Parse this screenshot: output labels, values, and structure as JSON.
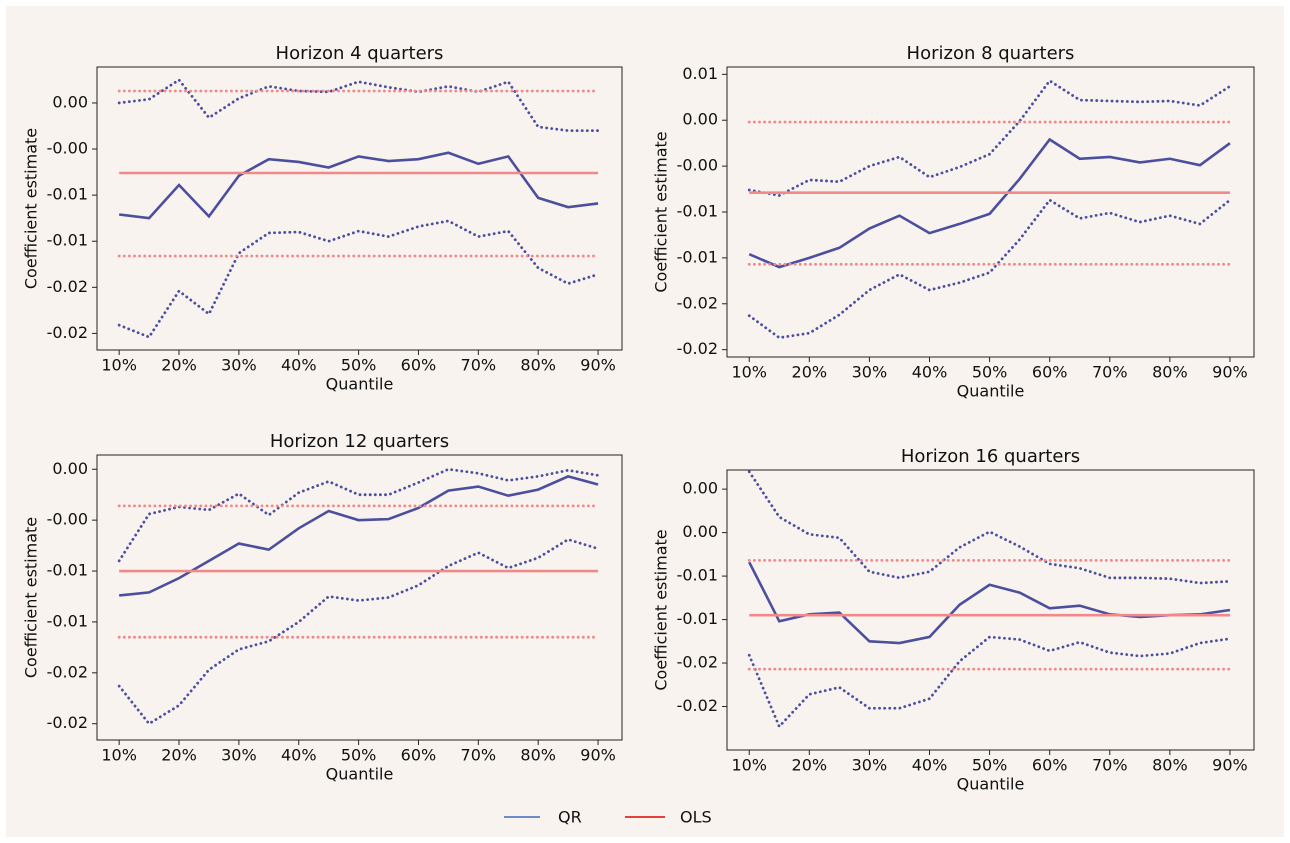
{
  "chart_data": [
    {
      "type": "line",
      "title": "Horizon 4 quarters",
      "xlabel": "Quantile",
      "ylabel": "Coefficient estimate",
      "x": [
        0.1,
        0.15,
        0.2,
        0.25,
        0.3,
        0.35,
        0.4,
        0.45,
        0.5,
        0.55,
        0.6,
        0.65,
        0.7,
        0.75,
        0.8,
        0.85,
        0.9
      ],
      "xlim": [
        0.063,
        0.94
      ],
      "xticks": [
        {
          "value": 0.1,
          "label": "10%"
        },
        {
          "value": 0.2,
          "label": "20%"
        },
        {
          "value": 0.3,
          "label": "30%"
        },
        {
          "value": 0.4,
          "label": "40%"
        },
        {
          "value": 0.5,
          "label": "50%"
        },
        {
          "value": 0.6,
          "label": "60%"
        },
        {
          "value": 0.7,
          "label": "70%"
        },
        {
          "value": 0.8,
          "label": "80%"
        },
        {
          "value": 0.9,
          "label": "90%"
        }
      ],
      "ylim": [
        -0.0268,
        0.0039
      ],
      "yticks": [
        {
          "value": 0.0,
          "label": "0.00"
        },
        {
          "value": -0.005,
          "label": "-0.00"
        },
        {
          "value": -0.01,
          "label": "-0.01"
        },
        {
          "value": -0.015,
          "label": "-0.01"
        },
        {
          "value": -0.02,
          "label": "-0.02"
        },
        {
          "value": -0.025,
          "label": "-0.02"
        }
      ],
      "series": [
        {
          "color": "#4b4f9e",
          "dash": "solid",
          "values": [
            -0.0121,
            -0.0125,
            -0.0089,
            -0.0123,
            -0.0079,
            -0.0061,
            -0.0064,
            -0.007,
            -0.0058,
            -0.0063,
            -0.0061,
            -0.0054,
            -0.0066,
            -0.0058,
            -0.0103,
            -0.0113,
            -0.0109
          ]
        },
        {
          "color": "#4b4f9e",
          "dash": "dotted",
          "values": [
            0.0,
            0.0004,
            0.0025,
            -0.0016,
            0.0005,
            0.0018,
            0.0013,
            0.0012,
            0.0023,
            0.0017,
            0.0012,
            0.0018,
            0.0012,
            0.0023,
            -0.0026,
            -0.003,
            -0.003
          ]
        },
        {
          "color": "#4b4f9e",
          "dash": "dotted",
          "values": [
            -0.0241,
            -0.0254,
            -0.0204,
            -0.0229,
            -0.0163,
            -0.0141,
            -0.014,
            -0.015,
            -0.0139,
            -0.0145,
            -0.0134,
            -0.0128,
            -0.0145,
            -0.0139,
            -0.0179,
            -0.0196,
            -0.0186
          ]
        },
        {
          "color": "#f08a8a",
          "dash": "solid",
          "values": [
            -0.0076,
            -0.0076,
            -0.0076,
            -0.0076,
            -0.0076,
            -0.0076,
            -0.0076,
            -0.0076,
            -0.0076,
            -0.0076,
            -0.0076,
            -0.0076,
            -0.0076,
            -0.0076,
            -0.0076,
            -0.0076,
            -0.0076
          ]
        },
        {
          "color": "#f08a8a",
          "dash": "dotted",
          "values": [
            0.0013,
            0.0013,
            0.0013,
            0.0013,
            0.0013,
            0.0013,
            0.0013,
            0.0013,
            0.0013,
            0.0013,
            0.0013,
            0.0013,
            0.0013,
            0.0013,
            0.0013,
            0.0013,
            0.0013
          ]
        },
        {
          "color": "#f08a8a",
          "dash": "dotted",
          "values": [
            -0.0166,
            -0.0166,
            -0.0166,
            -0.0166,
            -0.0166,
            -0.0166,
            -0.0166,
            -0.0166,
            -0.0166,
            -0.0166,
            -0.0166,
            -0.0166,
            -0.0166,
            -0.0166,
            -0.0166,
            -0.0166,
            -0.0166
          ]
        }
      ]
    },
    {
      "type": "line",
      "title": "Horizon 8 quarters",
      "xlabel": "Quantile",
      "ylabel": "Coefficient estimate",
      "x": [
        0.1,
        0.15,
        0.2,
        0.25,
        0.3,
        0.35,
        0.4,
        0.45,
        0.5,
        0.55,
        0.6,
        0.65,
        0.7,
        0.75,
        0.8,
        0.85,
        0.9
      ],
      "xlim": [
        0.063,
        0.94
      ],
      "xticks": [
        {
          "value": 0.1,
          "label": "10%"
        },
        {
          "value": 0.2,
          "label": "20%"
        },
        {
          "value": 0.3,
          "label": "30%"
        },
        {
          "value": 0.4,
          "label": "40%"
        },
        {
          "value": 0.5,
          "label": "50%"
        },
        {
          "value": 0.6,
          "label": "60%"
        },
        {
          "value": 0.7,
          "label": "70%"
        },
        {
          "value": 0.8,
          "label": "80%"
        },
        {
          "value": 0.9,
          "label": "90%"
        }
      ],
      "ylim": [
        -0.0258,
        0.0058
      ],
      "yticks": [
        {
          "value": 0.005,
          "label": "0.01"
        },
        {
          "value": 0.0,
          "label": "0.00"
        },
        {
          "value": -0.005,
          "label": "-0.00"
        },
        {
          "value": -0.01,
          "label": "-0.01"
        },
        {
          "value": -0.015,
          "label": "-0.01"
        },
        {
          "value": -0.02,
          "label": "-0.02"
        },
        {
          "value": -0.025,
          "label": "-0.02"
        }
      ],
      "series": [
        {
          "color": "#4b4f9e",
          "dash": "solid",
          "values": [
            -0.0146,
            -0.016,
            -0.015,
            -0.0139,
            -0.0118,
            -0.0104,
            -0.0123,
            -0.0113,
            -0.0102,
            -0.0064,
            -0.0021,
            -0.0042,
            -0.004,
            -0.0046,
            -0.0042,
            -0.0049,
            -0.0025
          ]
        },
        {
          "color": "#4b4f9e",
          "dash": "dotted",
          "values": [
            -0.0076,
            -0.0082,
            -0.0065,
            -0.0067,
            -0.005,
            -0.004,
            -0.0062,
            -0.0051,
            -0.0037,
            -0.0001,
            0.0043,
            0.0022,
            0.0021,
            0.002,
            0.0021,
            0.0016,
            0.0037
          ]
        },
        {
          "color": "#4b4f9e",
          "dash": "dotted",
          "values": [
            -0.0213,
            -0.0237,
            -0.0232,
            -0.0212,
            -0.0185,
            -0.0168,
            -0.0185,
            -0.0177,
            -0.0166,
            -0.013,
            -0.0087,
            -0.0107,
            -0.0101,
            -0.0111,
            -0.0104,
            -0.0113,
            -0.0087
          ]
        },
        {
          "color": "#f08a8a",
          "dash": "solid",
          "values": [
            -0.0079,
            -0.0079,
            -0.0079,
            -0.0079,
            -0.0079,
            -0.0079,
            -0.0079,
            -0.0079,
            -0.0079,
            -0.0079,
            -0.0079,
            -0.0079,
            -0.0079,
            -0.0079,
            -0.0079,
            -0.0079,
            -0.0079
          ]
        },
        {
          "color": "#f08a8a",
          "dash": "dotted",
          "values": [
            -0.0002,
            -0.0002,
            -0.0002,
            -0.0002,
            -0.0002,
            -0.0002,
            -0.0002,
            -0.0002,
            -0.0002,
            -0.0002,
            -0.0002,
            -0.0002,
            -0.0002,
            -0.0002,
            -0.0002,
            -0.0002,
            -0.0002
          ]
        },
        {
          "color": "#f08a8a",
          "dash": "dotted",
          "values": [
            -0.0157,
            -0.0157,
            -0.0157,
            -0.0157,
            -0.0157,
            -0.0157,
            -0.0157,
            -0.0157,
            -0.0157,
            -0.0157,
            -0.0157,
            -0.0157,
            -0.0157,
            -0.0157,
            -0.0157,
            -0.0157,
            -0.0157
          ]
        }
      ]
    },
    {
      "type": "line",
      "title": "Horizon 12 quarters",
      "xlabel": "Quantile",
      "ylabel": "Coefficient estimate",
      "x": [
        0.1,
        0.15,
        0.2,
        0.25,
        0.3,
        0.35,
        0.4,
        0.45,
        0.5,
        0.55,
        0.6,
        0.65,
        0.7,
        0.75,
        0.8,
        0.85,
        0.9
      ],
      "xlim": [
        0.063,
        0.94
      ],
      "xticks": [
        {
          "value": 0.1,
          "label": "10%"
        },
        {
          "value": 0.2,
          "label": "20%"
        },
        {
          "value": 0.3,
          "label": "30%"
        },
        {
          "value": 0.4,
          "label": "40%"
        },
        {
          "value": 0.5,
          "label": "50%"
        },
        {
          "value": 0.6,
          "label": "60%"
        },
        {
          "value": 0.7,
          "label": "70%"
        },
        {
          "value": 0.8,
          "label": "80%"
        },
        {
          "value": 0.9,
          "label": "90%"
        }
      ],
      "ylim": [
        -0.0266,
        0.0014
      ],
      "yticks": [
        {
          "value": 0.0,
          "label": "0.00"
        },
        {
          "value": -0.005,
          "label": "-0.00"
        },
        {
          "value": -0.01,
          "label": "-0.01"
        },
        {
          "value": -0.015,
          "label": "-0.01"
        },
        {
          "value": -0.02,
          "label": "-0.02"
        },
        {
          "value": -0.025,
          "label": "-0.02"
        }
      ],
      "series": [
        {
          "color": "#4b4f9e",
          "dash": "solid",
          "values": [
            -0.0124,
            -0.0121,
            -0.0107,
            -0.009,
            -0.0073,
            -0.0079,
            -0.0058,
            -0.0041,
            -0.005,
            -0.0049,
            -0.0038,
            -0.0021,
            -0.0017,
            -0.0026,
            -0.002,
            -0.0007,
            -0.0015
          ]
        },
        {
          "color": "#4b4f9e",
          "dash": "dotted",
          "values": [
            -0.009,
            -0.0044,
            -0.0037,
            -0.004,
            -0.0024,
            -0.0045,
            -0.0023,
            -0.0012,
            -0.0025,
            -0.0025,
            -0.0013,
            0.0,
            -0.0004,
            -0.0011,
            -0.0007,
            -0.0001,
            -0.0006
          ]
        },
        {
          "color": "#4b4f9e",
          "dash": "dotted",
          "values": [
            -0.0213,
            -0.025,
            -0.0232,
            -0.0197,
            -0.0177,
            -0.0169,
            -0.015,
            -0.0125,
            -0.0129,
            -0.0126,
            -0.0114,
            -0.0095,
            -0.0082,
            -0.0097,
            -0.0087,
            -0.0069,
            -0.0078
          ]
        },
        {
          "color": "#f08a8a",
          "dash": "solid",
          "values": [
            -0.01,
            -0.01,
            -0.01,
            -0.01,
            -0.01,
            -0.01,
            -0.01,
            -0.01,
            -0.01,
            -0.01,
            -0.01,
            -0.01,
            -0.01,
            -0.01,
            -0.01,
            -0.01,
            -0.01
          ]
        },
        {
          "color": "#f08a8a",
          "dash": "dotted",
          "values": [
            -0.0036,
            -0.0036,
            -0.0036,
            -0.0036,
            -0.0036,
            -0.0036,
            -0.0036,
            -0.0036,
            -0.0036,
            -0.0036,
            -0.0036,
            -0.0036,
            -0.0036,
            -0.0036,
            -0.0036,
            -0.0036,
            -0.0036
          ]
        },
        {
          "color": "#f08a8a",
          "dash": "dotted",
          "values": [
            -0.0165,
            -0.0165,
            -0.0165,
            -0.0165,
            -0.0165,
            -0.0165,
            -0.0165,
            -0.0165,
            -0.0165,
            -0.0165,
            -0.0165,
            -0.0165,
            -0.0165,
            -0.0165,
            -0.0165,
            -0.0165,
            -0.0165
          ]
        }
      ]
    },
    {
      "type": "line",
      "title": "Horizon 16 quarters",
      "xlabel": "Quantile",
      "ylabel": "Coefficient estimate",
      "x": [
        0.1,
        0.15,
        0.2,
        0.25,
        0.3,
        0.35,
        0.4,
        0.45,
        0.5,
        0.55,
        0.6,
        0.65,
        0.7,
        0.75,
        0.8,
        0.85,
        0.9
      ],
      "xlim": [
        0.063,
        0.94
      ],
      "xticks": [
        {
          "value": 0.1,
          "label": "10%"
        },
        {
          "value": 0.2,
          "label": "20%"
        },
        {
          "value": 0.3,
          "label": "30%"
        },
        {
          "value": 0.4,
          "label": "40%"
        },
        {
          "value": 0.5,
          "label": "50%"
        },
        {
          "value": 0.6,
          "label": "60%"
        },
        {
          "value": 0.7,
          "label": "70%"
        },
        {
          "value": 0.8,
          "label": "80%"
        },
        {
          "value": 0.9,
          "label": "90%"
        }
      ],
      "ylim": [
        -0.025,
        0.0072
      ],
      "yticks": [
        {
          "value": 0.005,
          "label": "0.00"
        },
        {
          "value": 0.0,
          "label": "0.00"
        },
        {
          "value": -0.005,
          "label": "-0.01"
        },
        {
          "value": -0.01,
          "label": "-0.01"
        },
        {
          "value": -0.015,
          "label": "-0.02"
        },
        {
          "value": -0.02,
          "label": "-0.02"
        }
      ],
      "series": [
        {
          "color": "#4b4f9e",
          "dash": "solid",
          "values": [
            -0.0034,
            -0.0102,
            -0.0094,
            -0.0092,
            -0.0125,
            -0.0127,
            -0.012,
            -0.0083,
            -0.006,
            -0.0069,
            -0.0087,
            -0.0084,
            -0.0094,
            -0.0097,
            -0.0095,
            -0.0094,
            -0.0089
          ]
        },
        {
          "color": "#4b4f9e",
          "dash": "dotted",
          "values": [
            0.007,
            0.0018,
            -0.0002,
            -0.0006,
            -0.0045,
            -0.0052,
            -0.0045,
            -0.0017,
            0.0001,
            -0.0016,
            -0.0036,
            -0.0041,
            -0.0052,
            -0.0052,
            -0.0053,
            -0.0058,
            -0.0056
          ]
        },
        {
          "color": "#4b4f9e",
          "dash": "dotted",
          "values": [
            -0.0141,
            -0.0223,
            -0.0186,
            -0.0178,
            -0.0202,
            -0.0202,
            -0.0191,
            -0.0148,
            -0.012,
            -0.0123,
            -0.0136,
            -0.0126,
            -0.0138,
            -0.0142,
            -0.0139,
            -0.0127,
            -0.0122
          ]
        },
        {
          "color": "#f08a8a",
          "dash": "solid",
          "values": [
            -0.0095,
            -0.0095,
            -0.0095,
            -0.0095,
            -0.0095,
            -0.0095,
            -0.0095,
            -0.0095,
            -0.0095,
            -0.0095,
            -0.0095,
            -0.0095,
            -0.0095,
            -0.0095,
            -0.0095,
            -0.0095,
            -0.0095
          ]
        },
        {
          "color": "#f08a8a",
          "dash": "dotted",
          "values": [
            -0.0032,
            -0.0032,
            -0.0032,
            -0.0032,
            -0.0032,
            -0.0032,
            -0.0032,
            -0.0032,
            -0.0032,
            -0.0032,
            -0.0032,
            -0.0032,
            -0.0032,
            -0.0032,
            -0.0032,
            -0.0032,
            -0.0032
          ]
        },
        {
          "color": "#f08a8a",
          "dash": "dotted",
          "values": [
            -0.0157,
            -0.0157,
            -0.0157,
            -0.0157,
            -0.0157,
            -0.0157,
            -0.0157,
            -0.0157,
            -0.0157,
            -0.0157,
            -0.0157,
            -0.0157,
            -0.0157,
            -0.0157,
            -0.0157,
            -0.0157,
            -0.0157
          ]
        }
      ]
    }
  ],
  "legend": [
    {
      "name": "QR",
      "color": "#6a8cc7"
    },
    {
      "name": "OLS",
      "color": "#e3403a"
    }
  ]
}
